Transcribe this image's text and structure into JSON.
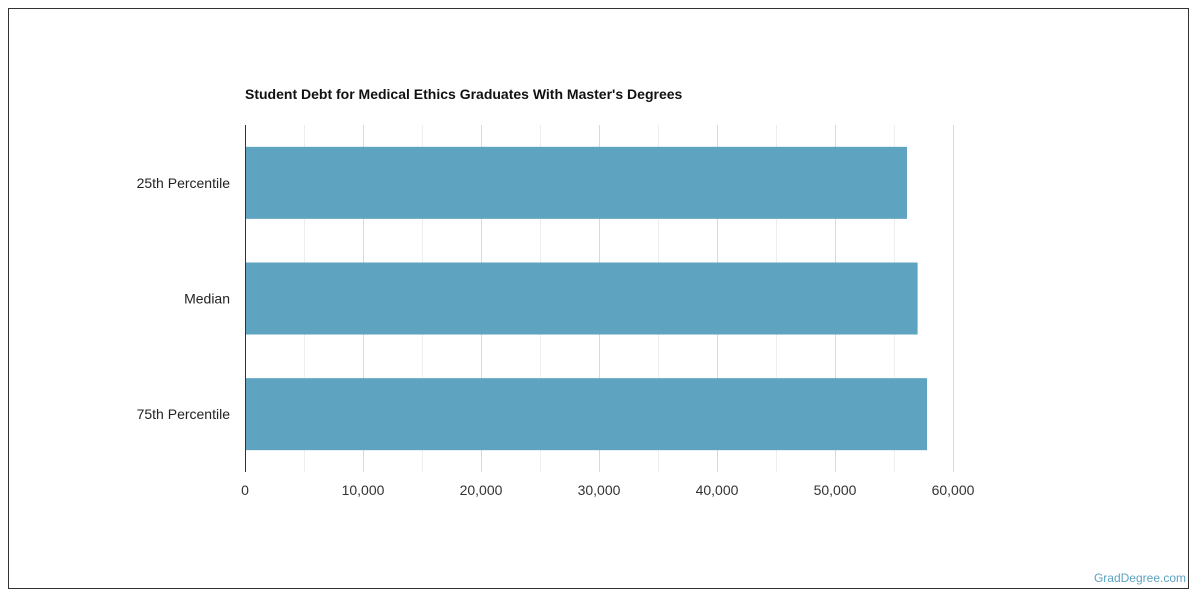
{
  "chart_data": {
    "type": "bar",
    "orientation": "horizontal",
    "title": "Student Debt for Medical Ethics Graduates With Master's Degrees",
    "categories": [
      "25th Percentile",
      "Median",
      "75th Percentile"
    ],
    "values": [
      56100,
      57000,
      57800
    ],
    "xlabel": "",
    "ylabel": "",
    "xlim": [
      0,
      60000
    ],
    "ticks": [
      0,
      10000,
      20000,
      30000,
      40000,
      50000,
      60000
    ],
    "tick_labels": [
      "0",
      "10,000",
      "20,000",
      "30,000",
      "40,000",
      "50,000",
      "60,000"
    ],
    "grid": true,
    "bar_color": "#5ea3c0"
  },
  "footer": {
    "brand": "GradDegree.com"
  }
}
